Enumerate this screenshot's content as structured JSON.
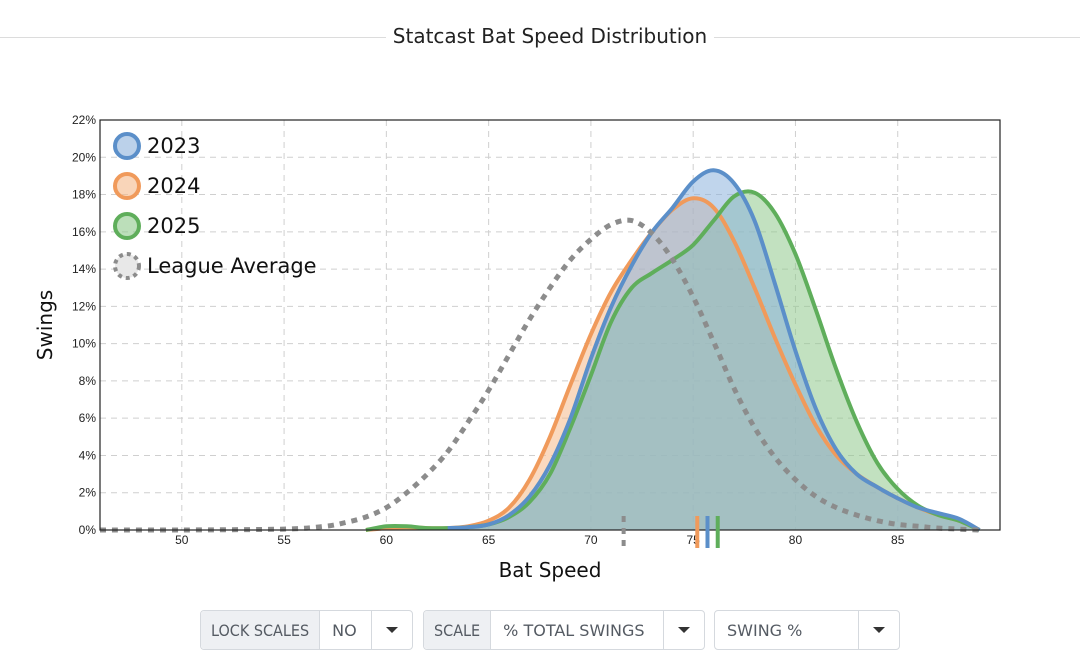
{
  "title": "Statcast Bat Speed Distribution",
  "controls": {
    "lock_scales_label": "LOCK SCALES",
    "lock_scales_value": "NO",
    "scale_label": "SCALE",
    "scale_value": "% TOTAL SWINGS",
    "metric_value": "SWING %"
  },
  "chart_data": {
    "type": "area",
    "xlabel": "Bat Speed",
    "ylabel": "Swings",
    "xlim": [
      46,
      90
    ],
    "ylim": [
      0,
      22
    ],
    "x_ticks": [
      50,
      55,
      60,
      65,
      70,
      75,
      80,
      85
    ],
    "y_ticks": [
      "0%",
      "2%",
      "4%",
      "6%",
      "8%",
      "10%",
      "12%",
      "14%",
      "16%",
      "18%",
      "20%",
      "22%"
    ],
    "grid": true,
    "legend_position": "top-left",
    "series": [
      {
        "name": "2023",
        "color": "#5b8fc9",
        "fill": "#8db2dc",
        "mean_marker": 75.7,
        "points": [
          [
            63,
            0.1
          ],
          [
            64,
            0.15
          ],
          [
            65,
            0.3
          ],
          [
            66,
            0.8
          ],
          [
            67,
            1.8
          ],
          [
            68,
            3.5
          ],
          [
            69,
            6.0
          ],
          [
            70,
            9.2
          ],
          [
            71,
            12.0
          ],
          [
            72,
            14.2
          ],
          [
            73,
            16.0
          ],
          [
            74,
            17.3
          ],
          [
            75,
            18.7
          ],
          [
            76,
            19.3
          ],
          [
            77,
            18.6
          ],
          [
            78,
            16.6
          ],
          [
            79,
            13.2
          ],
          [
            80,
            9.6
          ],
          [
            81,
            6.5
          ],
          [
            82,
            4.3
          ],
          [
            83,
            3.0
          ],
          [
            84,
            2.3
          ],
          [
            85,
            1.7
          ],
          [
            86,
            1.2
          ],
          [
            87,
            0.9
          ],
          [
            88,
            0.6
          ],
          [
            89,
            0.0
          ]
        ]
      },
      {
        "name": "2024",
        "color": "#f09a5b",
        "fill": "#f5b98a",
        "mean_marker": 75.2,
        "points": [
          [
            59,
            0.0
          ],
          [
            60,
            0.1
          ],
          [
            61,
            0.15
          ],
          [
            62,
            0.1
          ],
          [
            63,
            0.1
          ],
          [
            64,
            0.2
          ],
          [
            65,
            0.5
          ],
          [
            66,
            1.2
          ],
          [
            67,
            2.7
          ],
          [
            68,
            5.0
          ],
          [
            69,
            7.8
          ],
          [
            70,
            10.5
          ],
          [
            71,
            12.8
          ],
          [
            72,
            14.5
          ],
          [
            73,
            16.0
          ],
          [
            74,
            17.2
          ],
          [
            75,
            17.8
          ],
          [
            76,
            17.3
          ],
          [
            77,
            15.5
          ],
          [
            78,
            13.0
          ],
          [
            79,
            10.3
          ],
          [
            80,
            7.8
          ],
          [
            81,
            5.6
          ],
          [
            82,
            4.0
          ],
          [
            83,
            3.0
          ],
          [
            84,
            2.3
          ],
          [
            85,
            1.7
          ],
          [
            86,
            1.2
          ],
          [
            87,
            0.8
          ],
          [
            88,
            0.5
          ],
          [
            89,
            0.0
          ]
        ]
      },
      {
        "name": "2025",
        "color": "#5fae5b",
        "fill": "#90c98c",
        "mean_marker": 76.2,
        "points": [
          [
            59,
            0.0
          ],
          [
            60,
            0.2
          ],
          [
            61,
            0.2
          ],
          [
            62,
            0.1
          ],
          [
            63,
            0.1
          ],
          [
            64,
            0.15
          ],
          [
            65,
            0.3
          ],
          [
            66,
            0.7
          ],
          [
            67,
            1.5
          ],
          [
            68,
            3.0
          ],
          [
            69,
            5.5
          ],
          [
            70,
            8.3
          ],
          [
            71,
            11.2
          ],
          [
            72,
            13.0
          ],
          [
            73,
            13.8
          ],
          [
            74,
            14.5
          ],
          [
            75,
            15.3
          ],
          [
            76,
            16.6
          ],
          [
            77,
            17.9
          ],
          [
            78,
            18.1
          ],
          [
            79,
            17.0
          ],
          [
            80,
            14.8
          ],
          [
            81,
            11.8
          ],
          [
            82,
            8.6
          ],
          [
            83,
            5.8
          ],
          [
            84,
            3.6
          ],
          [
            85,
            2.2
          ],
          [
            86,
            1.3
          ],
          [
            87,
            0.8
          ],
          [
            88,
            0.5
          ],
          [
            89,
            0.0
          ]
        ]
      },
      {
        "name": "League Average",
        "color": "#8c8c8c",
        "dashed": true,
        "mean_marker": 71.6,
        "points": [
          [
            46,
            0.0
          ],
          [
            50,
            0.0
          ],
          [
            55,
            0.05
          ],
          [
            57,
            0.2
          ],
          [
            58,
            0.4
          ],
          [
            59,
            0.7
          ],
          [
            60,
            1.2
          ],
          [
            61,
            2.0
          ],
          [
            62,
            3.0
          ],
          [
            63,
            4.2
          ],
          [
            64,
            5.8
          ],
          [
            65,
            7.5
          ],
          [
            66,
            9.4
          ],
          [
            67,
            11.3
          ],
          [
            68,
            13.0
          ],
          [
            69,
            14.5
          ],
          [
            70,
            15.6
          ],
          [
            71,
            16.4
          ],
          [
            72,
            16.6
          ],
          [
            73,
            15.9
          ],
          [
            74,
            14.5
          ],
          [
            75,
            12.5
          ],
          [
            76,
            10.1
          ],
          [
            77,
            7.6
          ],
          [
            78,
            5.5
          ],
          [
            79,
            3.9
          ],
          [
            80,
            2.7
          ],
          [
            81,
            1.8
          ],
          [
            82,
            1.2
          ],
          [
            83,
            0.8
          ],
          [
            84,
            0.5
          ],
          [
            85,
            0.3
          ],
          [
            86,
            0.2
          ],
          [
            87,
            0.1
          ],
          [
            89,
            0.0
          ]
        ]
      }
    ]
  }
}
